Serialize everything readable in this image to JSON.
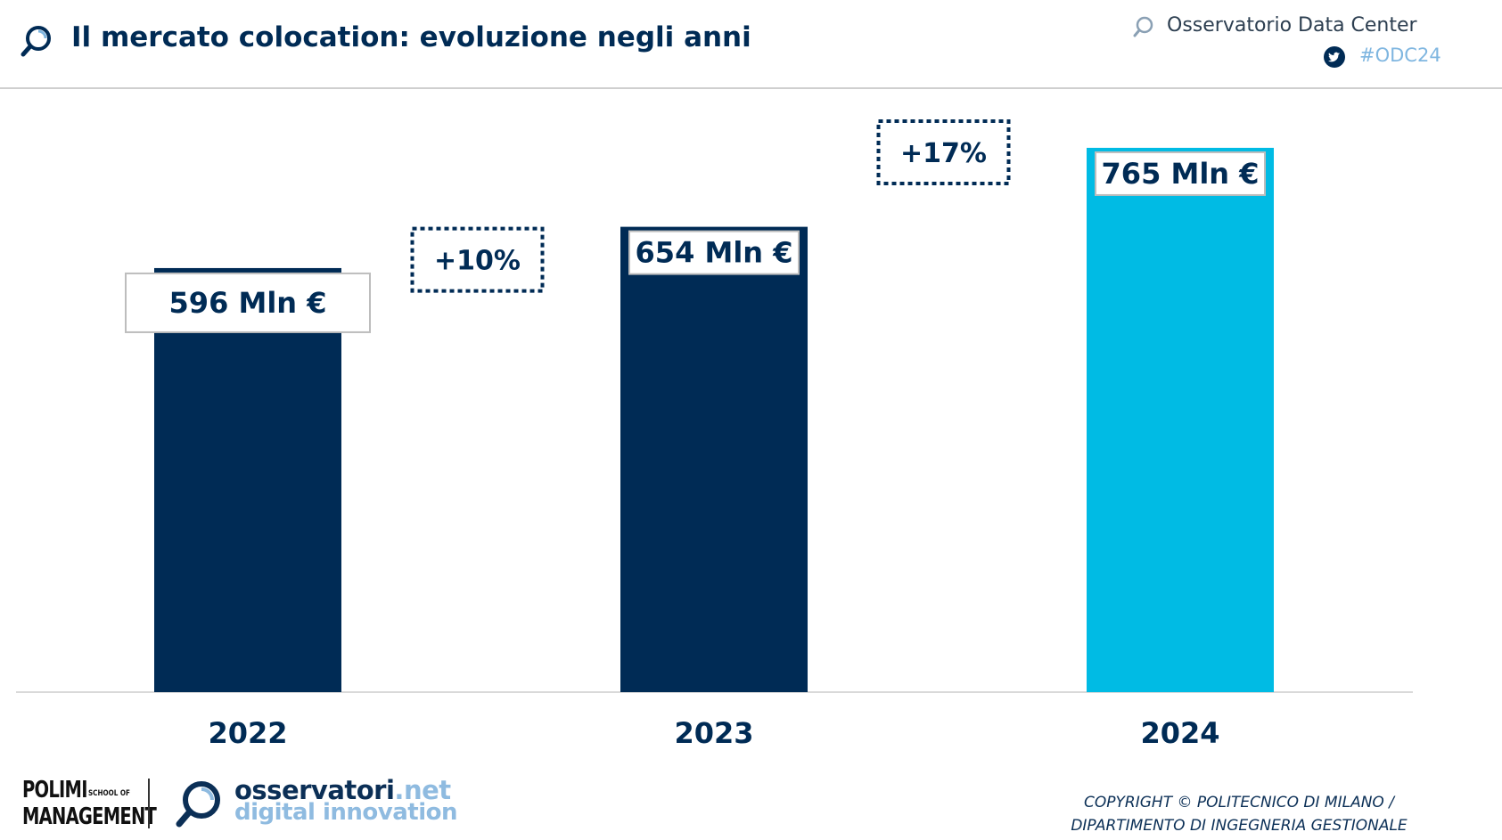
{
  "header": {
    "title": "Il mercato colocation: evoluzione negli anni",
    "brand": "Osservatorio Data Center",
    "hashtag": "#ODC24",
    "icons": [
      "magnifier-logo-icon",
      "twitter-icon"
    ]
  },
  "colors": {
    "dark_blue": "#002b55",
    "cyan": "#00bbe4",
    "hashtag": "#7fb6e0"
  },
  "chart_data": {
    "type": "bar",
    "categories": [
      "2022",
      "2023",
      "2024"
    ],
    "values": [
      596,
      654,
      765
    ],
    "value_labels": [
      "596 Mln €",
      "654 Mln €",
      "765 Mln €"
    ],
    "bar_colors": [
      "#002b55",
      "#002b55",
      "#00bbe4"
    ],
    "growth_labels": [
      "+10%",
      "+17%"
    ],
    "ylim": [
      0,
      800
    ],
    "grid": false,
    "title": "",
    "xlabel": "",
    "ylabel": ""
  },
  "footer": {
    "polimi_line1": "POLIMI",
    "polimi_school": "SCHOOL OF",
    "polimi_line2": "MANAGEMENT",
    "osservatori_name": "osservatori",
    "osservatori_suffix": ".net",
    "osservatori_tagline": "digital innovation",
    "copyright_line1": "COPYRIGHT © POLITECNICO DI MILANO /",
    "copyright_line2": "DIPARTIMENTO DI INGEGNERIA GESTIONALE"
  }
}
